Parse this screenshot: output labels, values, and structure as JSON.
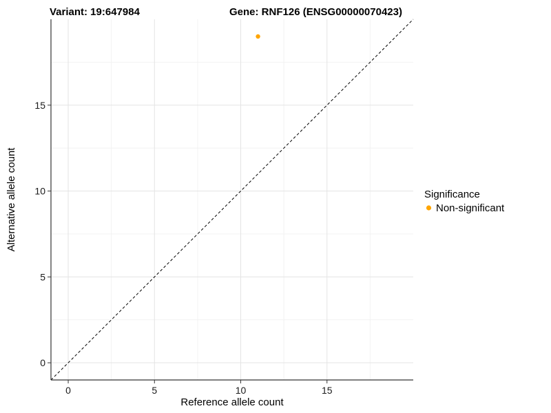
{
  "header": {
    "title_variant": "Variant: 19:647984",
    "title_gene": "Gene: RNF126 (ENSG00000070423)"
  },
  "chart_data": {
    "type": "scatter",
    "titles": [
      "Variant: 19:647984",
      "Gene: RNF126 (ENSG00000070423)"
    ],
    "xlabel": "Reference allele count",
    "ylabel": "Alternative allele count",
    "xlim": [
      -1,
      20
    ],
    "ylim": [
      -1,
      20
    ],
    "xticks": [
      0,
      5,
      10,
      15
    ],
    "yticks": [
      0,
      5,
      10,
      15
    ],
    "xminor": [
      2.5,
      7.5,
      12.5,
      17.5
    ],
    "yminor": [
      2.5,
      7.5,
      12.5,
      17.5
    ],
    "grid": "on",
    "identity_line": {
      "style": "dashed",
      "color": "#000000",
      "from": [
        -1,
        -1
      ],
      "to": [
        20,
        20
      ]
    },
    "series": [
      {
        "name": "Non-significant",
        "color": "#FFA500",
        "points": [
          [
            11,
            19
          ]
        ]
      }
    ],
    "legend": {
      "title": "Significance",
      "position": "right",
      "items": [
        {
          "label": "Non-significant",
          "color": "#FFA500"
        }
      ]
    }
  }
}
